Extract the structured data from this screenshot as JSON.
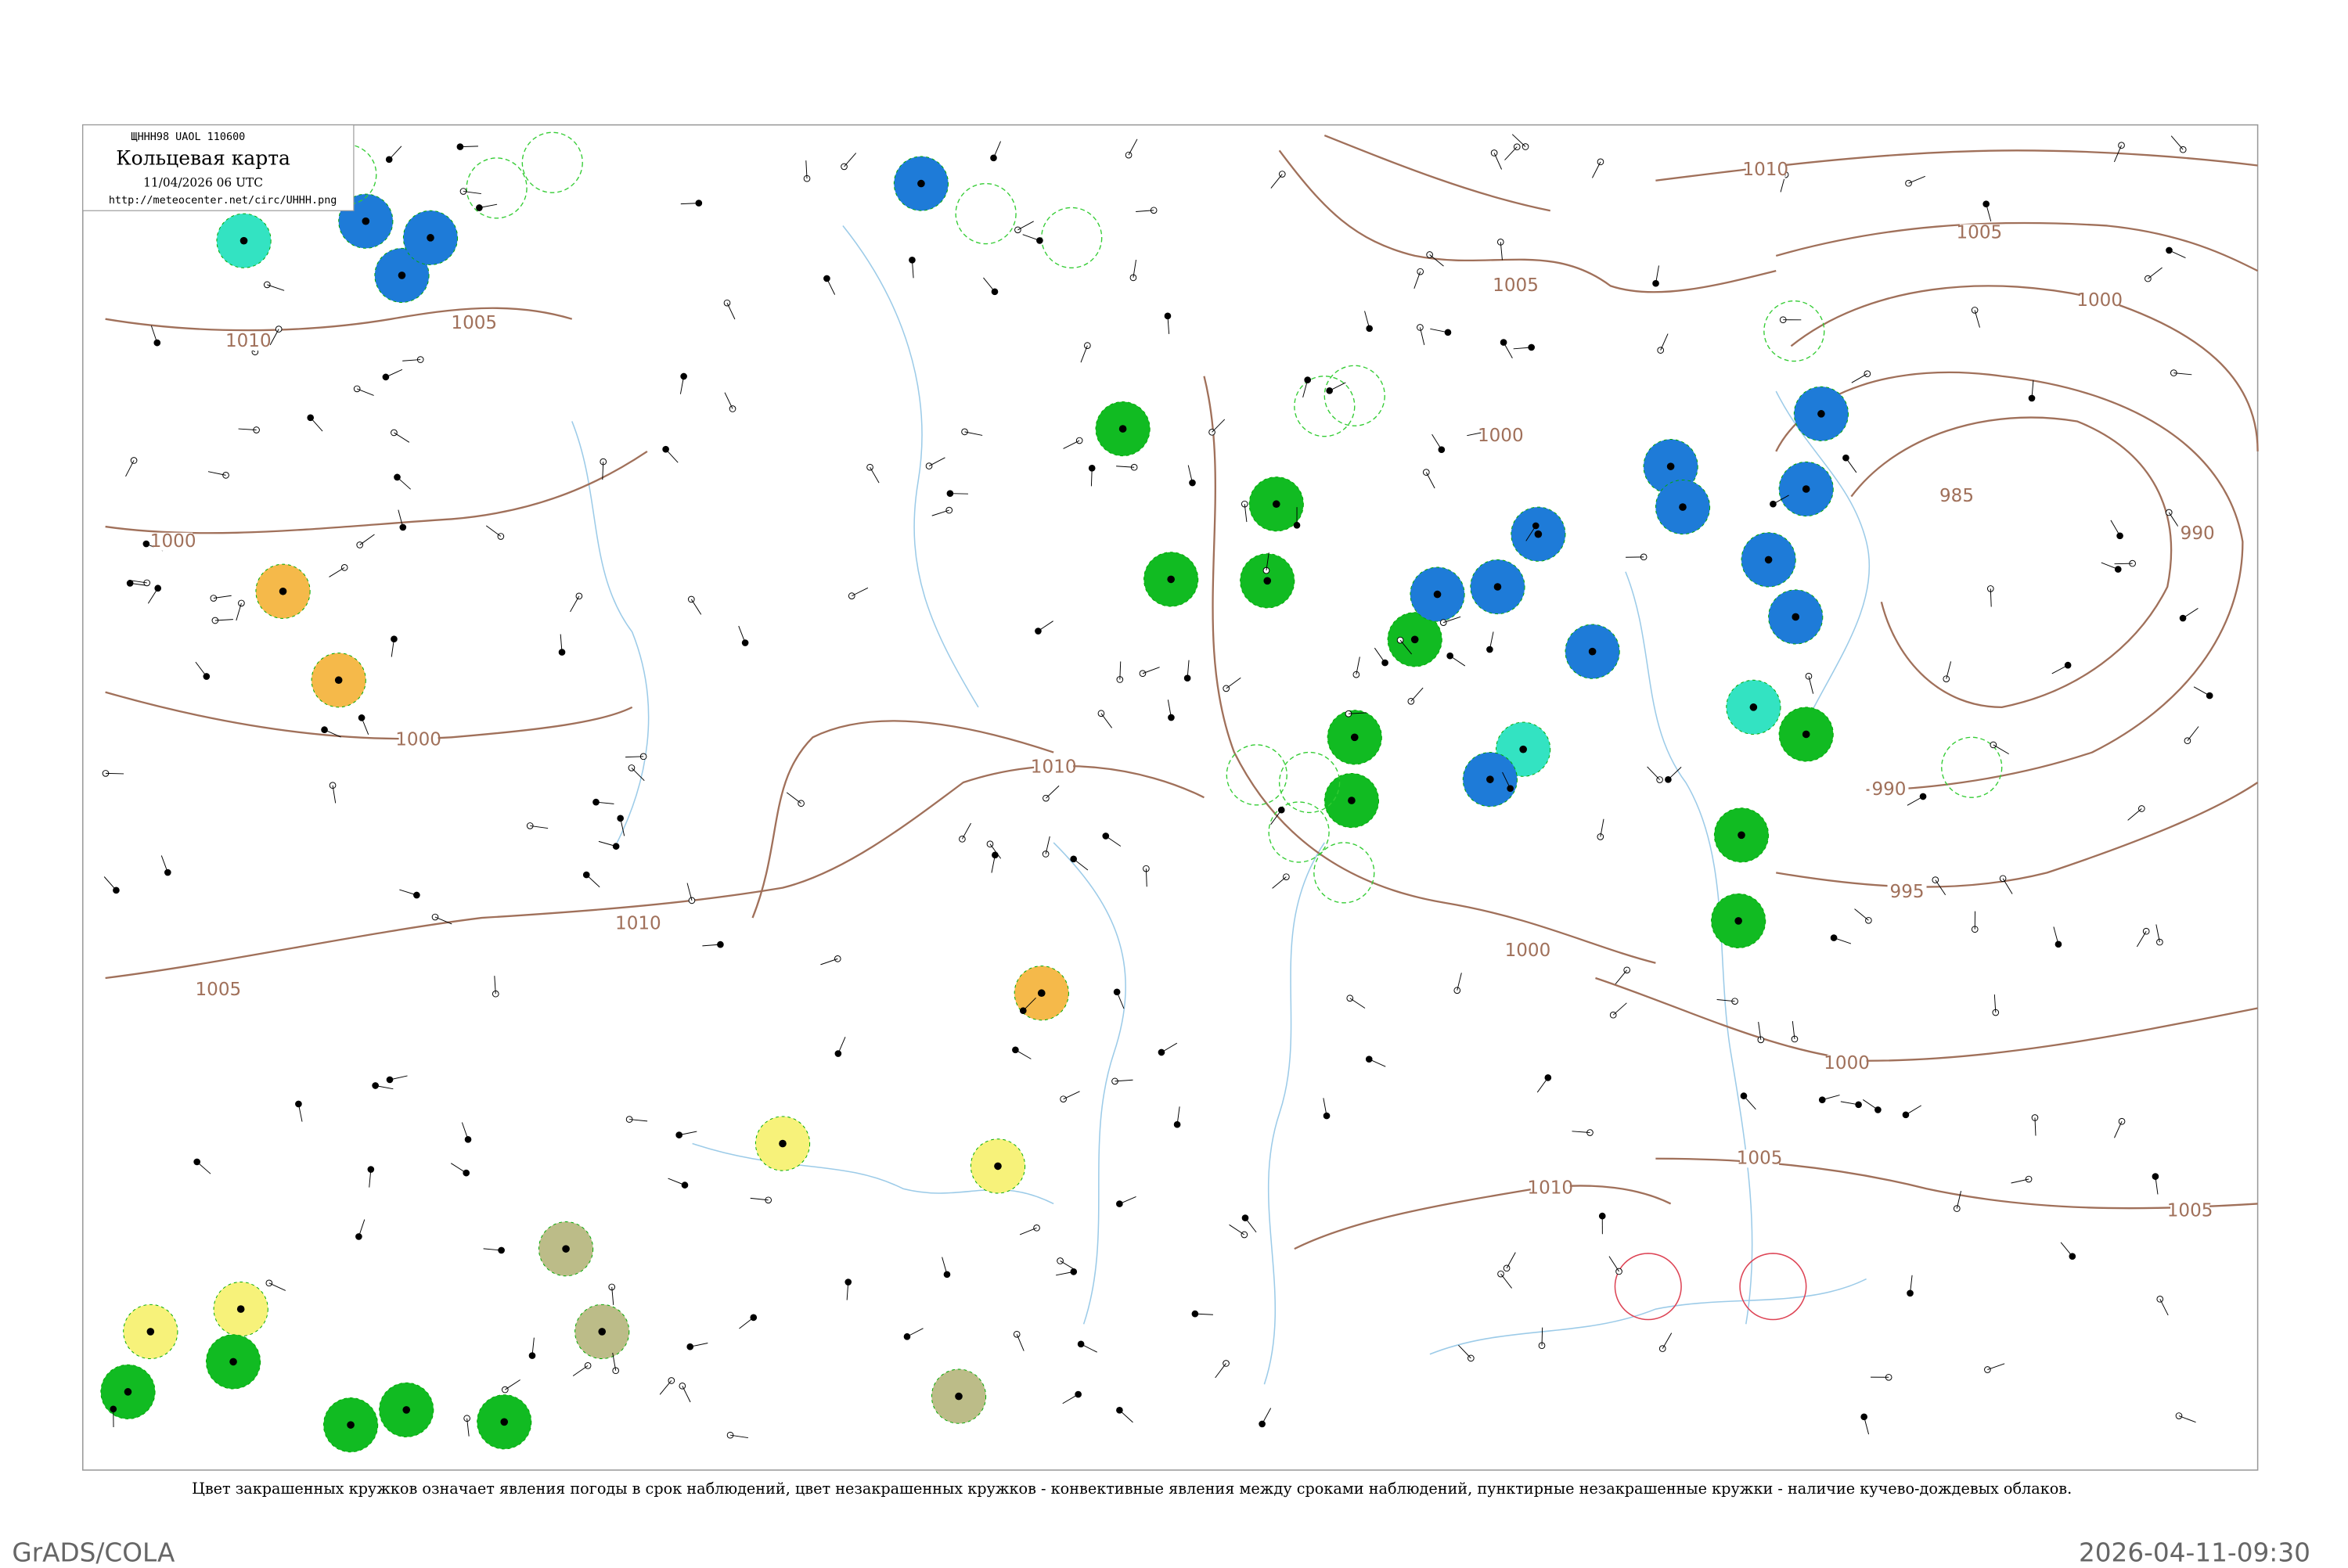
{
  "header": {
    "code": "ЩНHH98 UAOL 110600",
    "title": "Кольцевая карта",
    "date": "11/04/2026 06 UTC",
    "url": "http://meteocenter.net/circ/UHHH.png"
  },
  "isobar_labels": [
    "1010",
    "1005",
    "1000",
    "1000",
    "1005",
    "1010",
    "1005",
    "1000",
    "1010",
    "1005",
    "1000",
    "985",
    "990",
    "990",
    "995",
    "1000",
    "1000",
    "1005",
    "1010",
    "1005",
    "1010"
  ],
  "caption": "Цвет закрашенных кружков означает явления погоды в срок наблюдений, цвет незакрашенных кружков - конвективные явления между сроками наблюдений, пунктирные незакрашенные кружки - наличие кучево-дождевых облаков.",
  "footer": {
    "left": "GrADS/COLA",
    "right": "2026-04-11-09:30"
  }
}
